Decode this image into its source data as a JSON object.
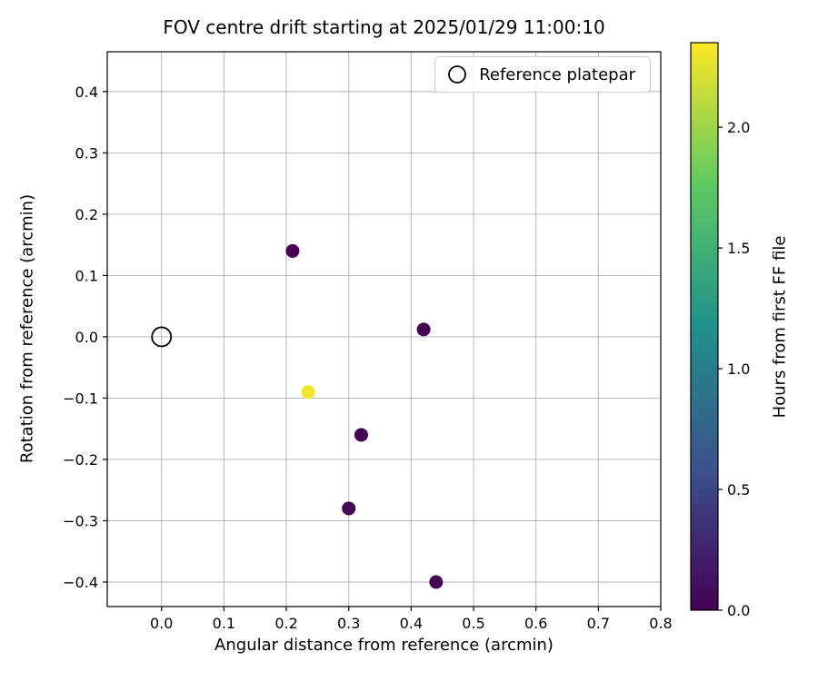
{
  "chart_data": {
    "type": "scatter",
    "title": "FOV centre drift starting at 2025/01/29 11:00:10",
    "xlabel": "Angular distance from reference (arcmin)",
    "ylabel": "Rotation from reference (arcmin)",
    "xlim": [
      -0.087,
      0.8
    ],
    "ylim": [
      -0.44,
      0.465
    ],
    "xticks": [
      0.0,
      0.1,
      0.2,
      0.3,
      0.4,
      0.5,
      0.6,
      0.7,
      0.8
    ],
    "yticks": [
      -0.4,
      -0.3,
      -0.2,
      -0.1,
      0.0,
      0.1,
      0.2,
      0.3,
      0.4
    ],
    "grid": true,
    "legend": {
      "label": "Reference platepar",
      "position": "upper right",
      "marker": "open-circle"
    },
    "reference_point": {
      "x": 0.0,
      "y": 0.0
    },
    "points": [
      {
        "x": 0.21,
        "y": 0.14,
        "hours": 0.0
      },
      {
        "x": 0.42,
        "y": 0.012,
        "hours": 0.0
      },
      {
        "x": 0.235,
        "y": -0.09,
        "hours": 2.3
      },
      {
        "x": 0.32,
        "y": -0.16,
        "hours": 0.0
      },
      {
        "x": 0.3,
        "y": -0.28,
        "hours": 0.0
      },
      {
        "x": 0.44,
        "y": -0.4,
        "hours": 0.0
      }
    ],
    "colorbar": {
      "label": "Hours from first FF file",
      "min": 0.0,
      "max": 2.35,
      "ticks": [
        0.0,
        0.5,
        1.0,
        1.5,
        2.0
      ],
      "colormap": "viridis",
      "colormap_stops": [
        "#440154",
        "#3b528b",
        "#21918c",
        "#5ec962",
        "#fde725"
      ]
    }
  }
}
